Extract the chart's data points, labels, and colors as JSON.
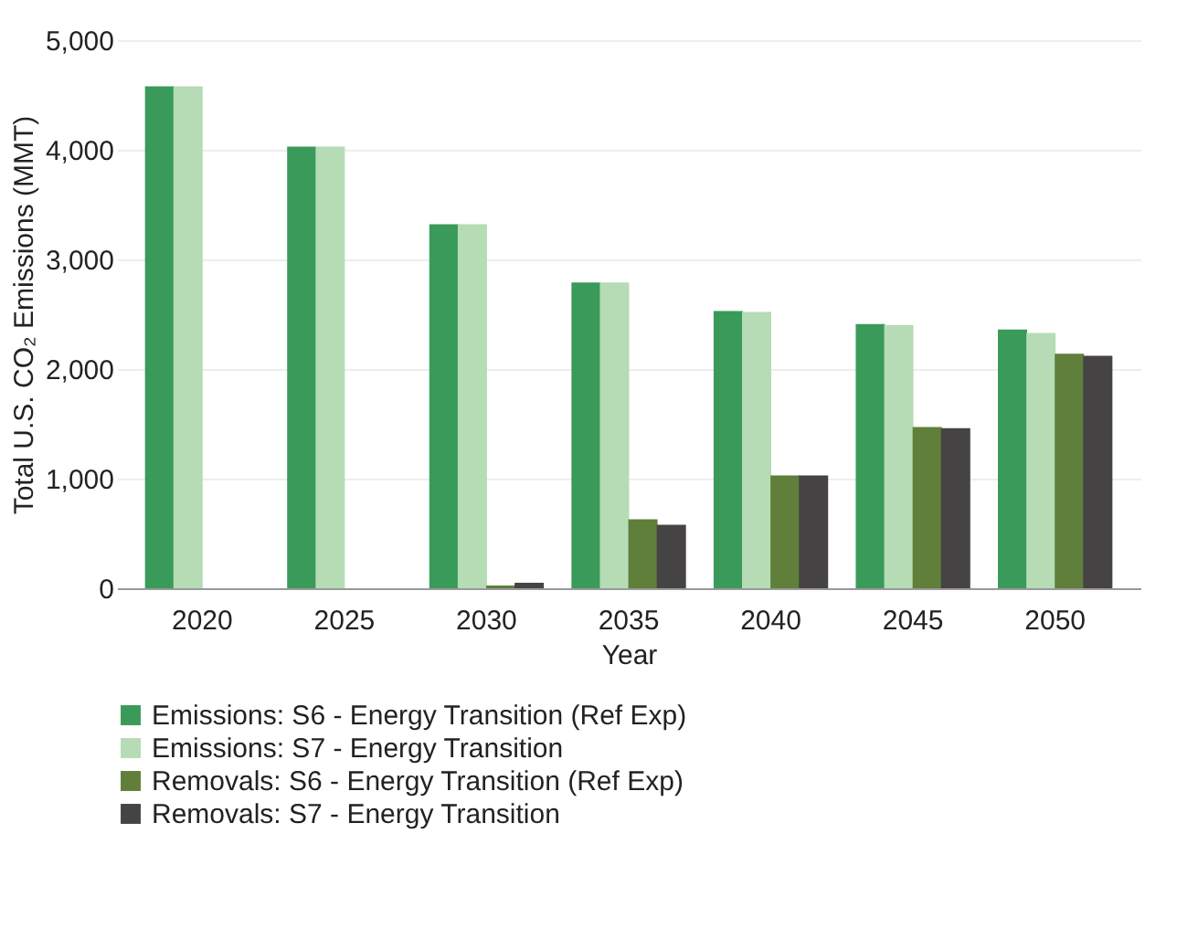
{
  "chart_data": {
    "type": "bar",
    "xlabel": "Year",
    "ylabel": "Total U.S. CO₂ Emissions (MMT)",
    "categories": [
      "2020",
      "2025",
      "2030",
      "2035",
      "2040",
      "2045",
      "2050"
    ],
    "series": [
      {
        "name": "Emissions: S6 - Energy Transition (Ref Exp)",
        "color": "#3a9a5a",
        "values": [
          4580,
          4030,
          3320,
          2790,
          2530,
          2410,
          2360
        ]
      },
      {
        "name": "Emissions: S7 - Energy Transition",
        "color": "#b5dcb5",
        "values": [
          4580,
          4030,
          3320,
          2790,
          2520,
          2400,
          2330
        ]
      },
      {
        "name": "Removals: S6 - Energy Transition (Ref Exp)",
        "color": "#5f7f3a",
        "values": [
          0,
          0,
          25,
          630,
          1030,
          1470,
          2140
        ]
      },
      {
        "name": "Removals: S7 - Energy Transition",
        "color": "#454343",
        "values": [
          0,
          0,
          50,
          580,
          1030,
          1460,
          2120
        ]
      }
    ],
    "ylim": [
      0,
      5000
    ],
    "yticks": [
      {
        "value": 0,
        "label": "0"
      },
      {
        "value": 1000,
        "label": "1,000"
      },
      {
        "value": 2000,
        "label": "2,000"
      },
      {
        "value": 3000,
        "label": "3,000"
      },
      {
        "value": 4000,
        "label": "4,000"
      },
      {
        "value": 5000,
        "label": "5,000"
      }
    ],
    "grid": "y",
    "legend": "bottom"
  }
}
